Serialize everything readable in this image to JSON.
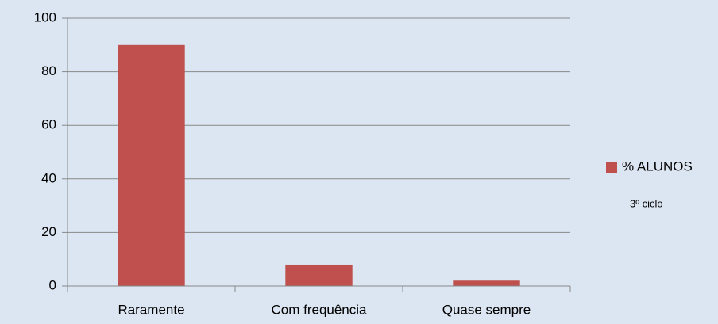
{
  "chart_data": {
    "type": "bar",
    "categories": [
      "Raramente",
      "Com frequência",
      "Quase sempre"
    ],
    "series": [
      {
        "name": "% ALUNOS",
        "color": "#c0504d",
        "values": [
          90,
          8,
          2
        ]
      }
    ],
    "annotation": "3º ciclo",
    "ylim": [
      0,
      100
    ],
    "yticks": [
      0,
      20,
      40,
      60,
      80,
      100
    ],
    "grid": true,
    "legend": "right"
  }
}
